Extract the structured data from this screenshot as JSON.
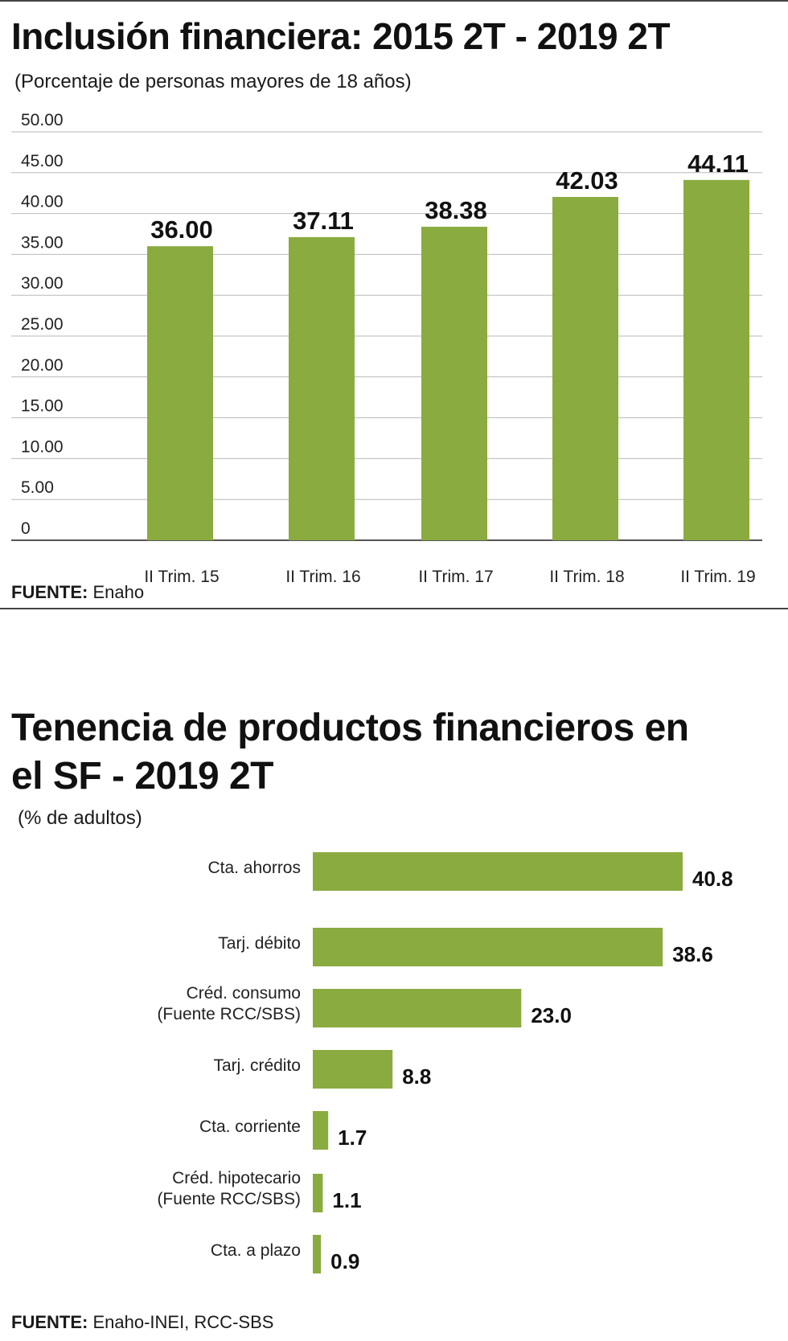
{
  "colors": {
    "bar": "#8aab3f",
    "grid": "#b9b9b9",
    "axis": "#555555",
    "rule": "#444444"
  },
  "chart_data": [
    {
      "type": "bar",
      "title": "Inclusión financiera: 2015 2T - 2019 2T",
      "subtitle": "(Porcentaje de personas mayores de 18 años)",
      "categories": [
        "II Trim. 15",
        "II Trim. 16",
        "II Trim. 17",
        "II Trim. 18",
        "II Trim. 19"
      ],
      "values": [
        36.0,
        37.11,
        38.38,
        42.03,
        44.11
      ],
      "value_labels": [
        "36.00",
        "37.11",
        "38.38",
        "42.03",
        "44.11"
      ],
      "ylim": [
        0,
        50
      ],
      "yticks": [
        0,
        5,
        10,
        15,
        20,
        25,
        30,
        35,
        40,
        45,
        50
      ],
      "ytick_labels": [
        "0",
        "5.00",
        "10.00",
        "15.00",
        "20.00",
        "25.00",
        "30.00",
        "35.00",
        "40.00",
        "45.00",
        "50.00"
      ],
      "grid": true,
      "source_label": "FUENTE:",
      "source": "Enaho"
    },
    {
      "type": "barh",
      "title_line1": "Tenencia de productos financieros en",
      "title_line2": "el SF - 2019 2T",
      "subtitle": "(% de adultos)",
      "categories": [
        [
          "Cta. ahorros"
        ],
        [
          "Tarj. débito"
        ],
        [
          "Créd. consumo",
          "(Fuente RCC/SBS)"
        ],
        [
          "Tarj. crédito"
        ],
        [
          "Cta. corriente"
        ],
        [
          "Créd. hipotecario",
          "(Fuente RCC/SBS)"
        ],
        [
          "Cta. a plazo"
        ]
      ],
      "values": [
        40.8,
        38.6,
        23.0,
        8.8,
        1.7,
        1.1,
        0.9
      ],
      "value_labels": [
        "40.8",
        "38.6",
        "23.0",
        "8.8",
        "1.7",
        "1.1",
        "0.9"
      ],
      "xlim": [
        0,
        40.8
      ],
      "source_label": "FUENTE:",
      "source": "Enaho-INEI, RCC-SBS"
    }
  ]
}
